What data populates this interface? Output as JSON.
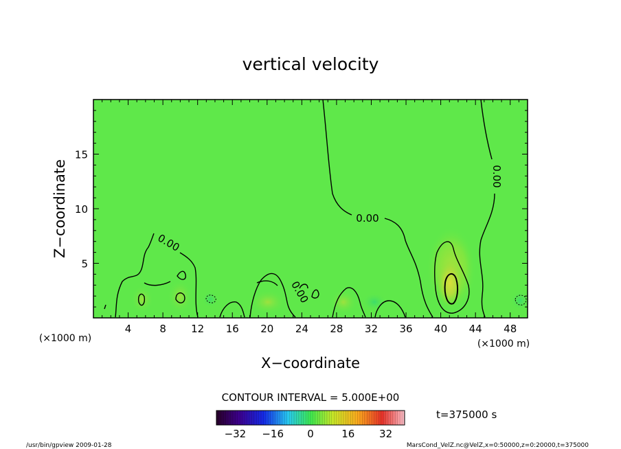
{
  "chart_data": {
    "type": "heatmap",
    "title": "vertical velocity",
    "xlabel": "X−coordinate",
    "ylabel": "Z−coordinate",
    "x_unit_left": "(×1000 m)",
    "x_unit_right": "(×1000 m)",
    "xlim": [
      0,
      50
    ],
    "ylim": [
      0,
      20
    ],
    "x_ticks": [
      4,
      8,
      12,
      16,
      20,
      24,
      28,
      32,
      36,
      40,
      44,
      48
    ],
    "y_ticks": [
      5,
      10,
      15
    ],
    "contour_interval": "CONTOUR INTERVAL = 5.000E+00",
    "contour_labels": [
      "0.00",
      "0.00",
      "0.00",
      "0.00"
    ],
    "time_label": "t=375000 s",
    "colorbar": {
      "range": [
        -40,
        40
      ],
      "ticks": [
        -32,
        -16,
        0,
        16,
        32
      ],
      "tick_labels": [
        "−32",
        "−16",
        "0",
        "16",
        "32"
      ]
    },
    "background_value": 0,
    "features": [
      {
        "name": "updraft core",
        "x": 41,
        "z": 3.2,
        "w": 10
      },
      {
        "name": "updraft",
        "x": 10,
        "z": 1.8,
        "w": 5
      },
      {
        "name": "updraft",
        "x": 5.5,
        "z": 1.6,
        "w": 5
      },
      {
        "name": "downdraft",
        "x": 13.5,
        "z": 1.7,
        "w": -5
      },
      {
        "name": "downdraft",
        "x": 49.5,
        "z": 1.6,
        "w": -5
      }
    ],
    "grid": false,
    "legend": "colorbar-bottom"
  },
  "footer": {
    "left": "/usr/bin/gpview   2009-01-28",
    "right": "MarsCond_VelZ.nc@VelZ,x=0:50000,z=0:20000,t=375000"
  }
}
